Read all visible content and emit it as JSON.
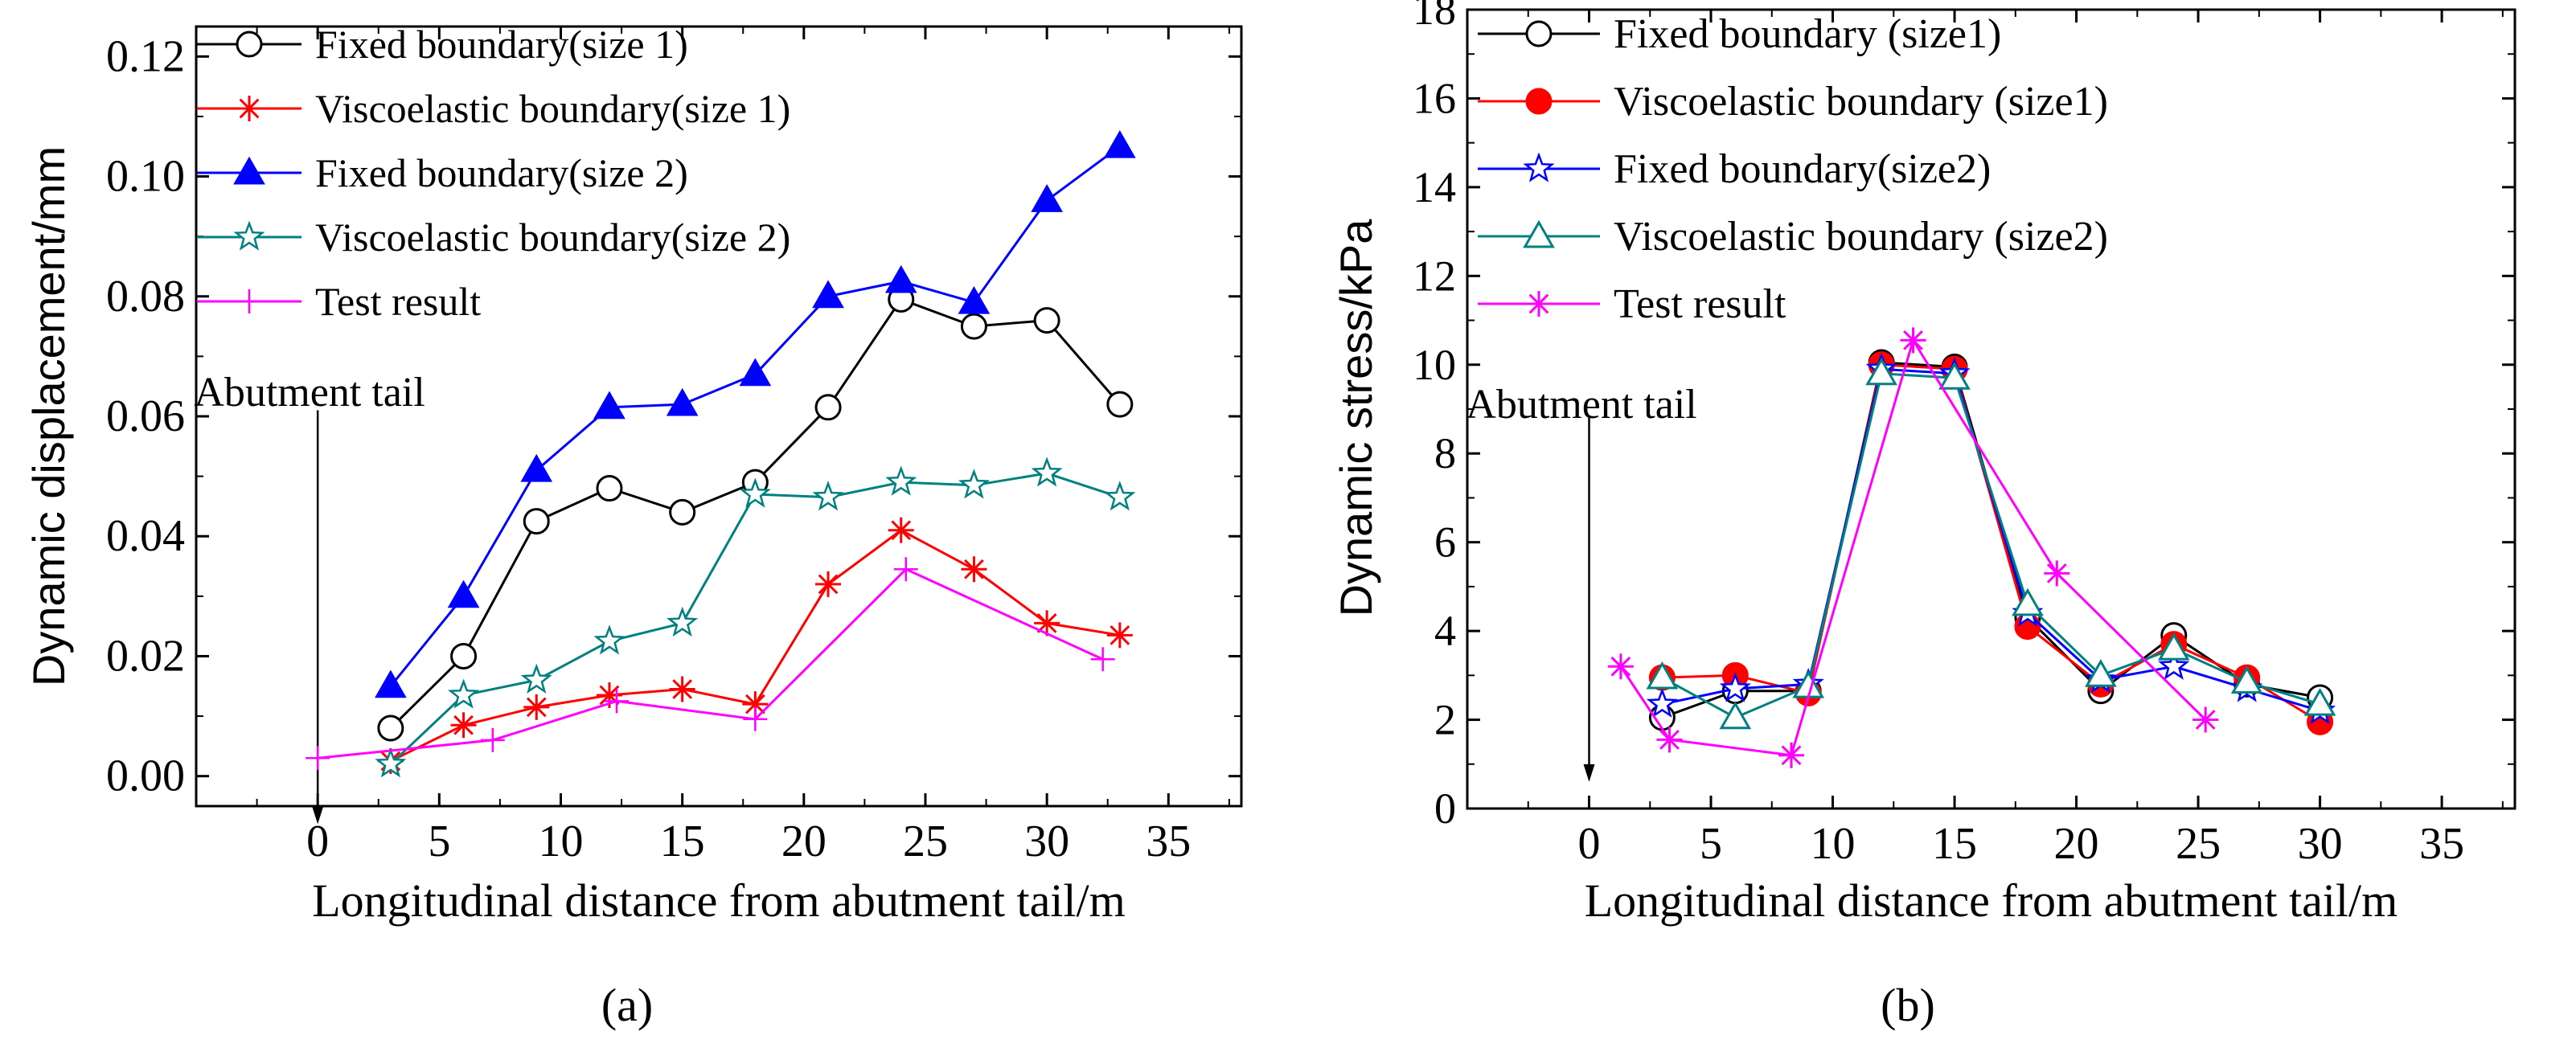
{
  "chart_data": [
    {
      "type": "line",
      "panel_label": "(a)",
      "title": "",
      "xlabel": "Longitudinal distance from abutment tail/m",
      "ylabel": "Dynamic displacement/mm",
      "xlim": [
        -5,
        38
      ],
      "ylim": [
        -0.005,
        0.125
      ],
      "xticks": [
        0,
        5,
        10,
        15,
        20,
        25,
        30,
        35
      ],
      "yticks": [
        0.0,
        0.02,
        0.04,
        0.06,
        0.08,
        0.1,
        0.12
      ],
      "ytick_labels": [
        "0.00",
        "0.02",
        "0.04",
        "0.06",
        "0.08",
        "0.10",
        "0.12"
      ],
      "grid": false,
      "legend_position": "top-left",
      "annotation": {
        "text": "Abutment tail",
        "x": 0,
        "arrow_top": 0.061,
        "arrow_bottom": -0.008
      },
      "series": [
        {
          "name": "Fixed boundary(size 1)",
          "color": "#000000",
          "marker": "circle-open",
          "x": [
            3,
            6,
            9,
            12,
            15,
            18,
            21,
            24,
            27,
            30,
            33
          ],
          "y": [
            0.008,
            0.02,
            0.0425,
            0.048,
            0.044,
            0.049,
            0.0615,
            0.0795,
            0.075,
            0.076,
            0.062
          ]
        },
        {
          "name": "Viscoelastic boundary(size 1)",
          "color": "#ff0000",
          "marker": "asterisk",
          "x": [
            3,
            6,
            9,
            12,
            15,
            18,
            21,
            24,
            27,
            30,
            33
          ],
          "y": [
            0.0025,
            0.0085,
            0.0115,
            0.0135,
            0.0145,
            0.012,
            0.032,
            0.041,
            0.0345,
            0.0255,
            0.0235
          ]
        },
        {
          "name": "Fixed boundary(size 2)",
          "color": "#0000ff",
          "marker": "triangle-filled",
          "x": [
            3,
            6,
            9,
            12,
            15,
            18,
            21,
            24,
            27,
            30,
            33
          ],
          "y": [
            0.015,
            0.03,
            0.051,
            0.0615,
            0.062,
            0.067,
            0.08,
            0.0825,
            0.079,
            0.096,
            0.105
          ]
        },
        {
          "name": "Viscoelastic boundary(size 2)",
          "color": "#008080",
          "marker": "star-open",
          "x": [
            3,
            6,
            9,
            12,
            15,
            18,
            21,
            24,
            27,
            30,
            33
          ],
          "y": [
            0.002,
            0.0135,
            0.016,
            0.0225,
            0.0255,
            0.047,
            0.0465,
            0.049,
            0.0485,
            0.0505,
            0.0465
          ]
        },
        {
          "name": "Test result",
          "color": "#ff00ff",
          "marker": "plus",
          "x": [
            0,
            7.2,
            12.3,
            18.0,
            24.2,
            32.3
          ],
          "y": [
            0.003,
            0.006,
            0.0125,
            0.0095,
            0.0345,
            0.0195
          ]
        }
      ]
    },
    {
      "type": "line",
      "panel_label": "(b)",
      "title": "",
      "xlabel": "Longitudinal distance from abutment tail/m",
      "ylabel": "Dynamic stress/kPa",
      "xlim": [
        -5,
        38
      ],
      "ylim": [
        0,
        18
      ],
      "xticks": [
        0,
        5,
        10,
        15,
        20,
        25,
        30,
        35
      ],
      "yticks": [
        0,
        2,
        4,
        6,
        8,
        10,
        12,
        14,
        16,
        18
      ],
      "ytick_labels": [
        "0",
        "2",
        "4",
        "6",
        "8",
        "10",
        "12",
        "14",
        "16",
        "18"
      ],
      "grid": false,
      "legend_position": "top-left",
      "annotation": {
        "text": "Abutment tail",
        "x": 0,
        "arrow_top": 8.8,
        "arrow_bottom": 0.6
      },
      "series": [
        {
          "name": "Fixed boundary (size1)",
          "color": "#000000",
          "marker": "circle-open",
          "x": [
            3,
            6,
            9,
            12,
            15,
            18,
            21,
            24,
            27,
            30
          ],
          "y": [
            2.05,
            2.65,
            2.65,
            10.05,
            9.95,
            4.3,
            2.65,
            3.9,
            2.8,
            2.5
          ]
        },
        {
          "name": "Viscoelastic boundary (size1)",
          "color": "#ff0000",
          "marker": "circle-filled",
          "x": [
            3,
            6,
            9,
            12,
            15,
            18,
            21,
            24,
            27,
            30
          ],
          "y": [
            2.95,
            3.0,
            2.6,
            10.0,
            9.9,
            4.1,
            2.8,
            3.7,
            2.95,
            1.95
          ]
        },
        {
          "name": "Fixed boundary(size2)",
          "color": "#0000ff",
          "marker": "star-open",
          "x": [
            3,
            6,
            9,
            12,
            15,
            18,
            21,
            24,
            27,
            30
          ],
          "y": [
            2.35,
            2.7,
            2.8,
            9.9,
            9.8,
            4.4,
            2.9,
            3.2,
            2.7,
            2.2
          ]
        },
        {
          "name": "Viscoelastic boundary (size2)",
          "color": "#008080",
          "marker": "triangle-open",
          "x": [
            3,
            6,
            9,
            12,
            15,
            18,
            21,
            24,
            27,
            30
          ],
          "y": [
            2.95,
            2.05,
            2.75,
            9.8,
            9.7,
            4.6,
            3.0,
            3.6,
            2.85,
            2.35
          ]
        },
        {
          "name": "Test result",
          "color": "#ff00ff",
          "marker": "asterisk",
          "x": [
            1.3,
            3.3,
            8.3,
            13.3,
            19.2,
            25.3
          ],
          "y": [
            3.2,
            1.55,
            1.2,
            10.55,
            5.3,
            2.0
          ]
        }
      ]
    }
  ]
}
